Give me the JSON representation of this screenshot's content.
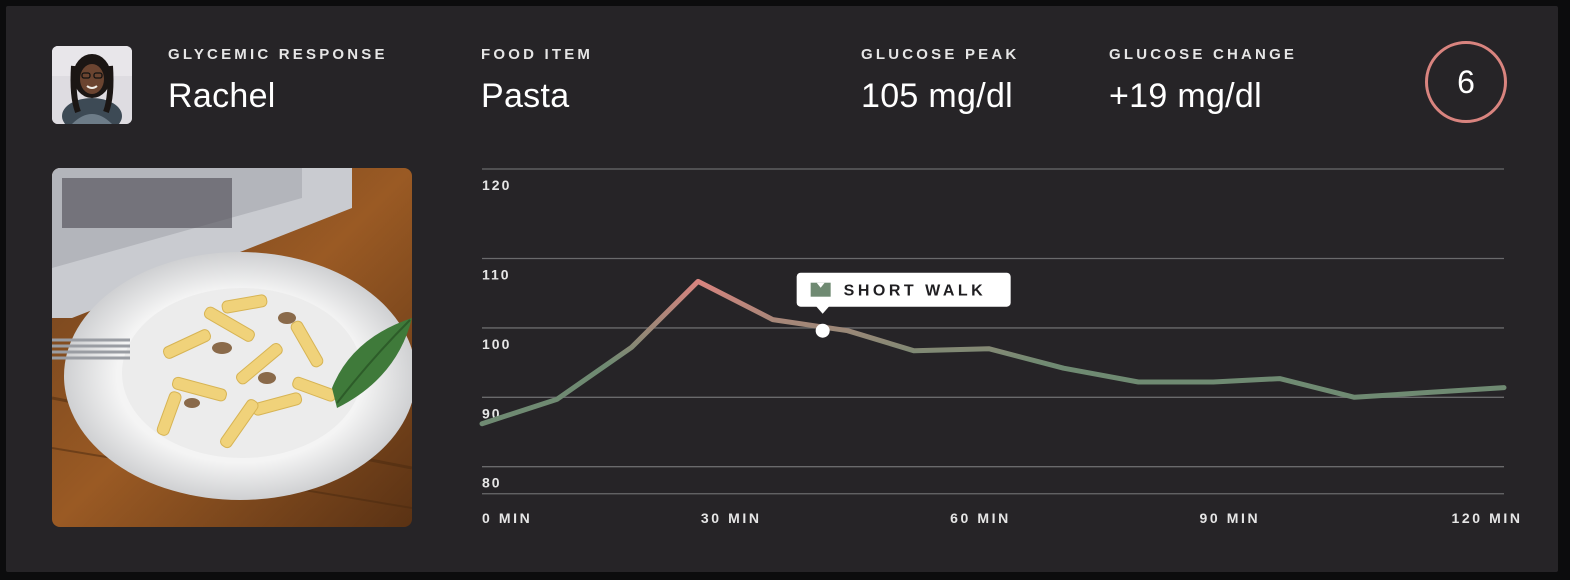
{
  "header": {
    "glycemic_label": "GLYCEMIC RESPONSE",
    "person_name": "Rachel",
    "food_label": "FOOD ITEM",
    "food_name": "Pasta",
    "peak_label": "GLUCOSE PEAK",
    "peak_value": "105 mg/dl",
    "change_label": "GLUCOSE CHANGE",
    "change_value": "+19 mg/dl",
    "score": "6"
  },
  "colors": {
    "card_bg": "#262427",
    "line_low": "#6f8a72",
    "line_high": "#d9847f",
    "score_ring": "#d9847f",
    "grid": "#6a6a6c"
  },
  "chart_data": {
    "type": "line",
    "title": "",
    "xlabel": "",
    "ylabel": "",
    "ylim": [
      75,
      124
    ],
    "xlim": [
      0,
      123
    ],
    "yticks": [
      120,
      110,
      100,
      90,
      80
    ],
    "xticks": [
      0,
      30,
      60,
      90,
      120
    ],
    "xtick_labels": [
      "0 MIN",
      "30 MIN",
      "60 MIN",
      "90 MIN",
      "120 MIN"
    ],
    "series": [
      {
        "name": "Glucose",
        "x": [
          0,
          9,
          18,
          26,
          35,
          44,
          52,
          61,
          70,
          79,
          88,
          96,
          105,
          114,
          123
        ],
        "values": [
          86,
          89.5,
          97,
          106.5,
          101,
          99.4,
          96.5,
          96.8,
          94,
          92,
          92,
          92.5,
          89.8,
          90.5,
          91.2
        ]
      }
    ],
    "annotations": [
      {
        "label": "SHORT WALK",
        "x": 41,
        "y": 99.4,
        "icon": "walk-flag-icon"
      }
    ]
  }
}
